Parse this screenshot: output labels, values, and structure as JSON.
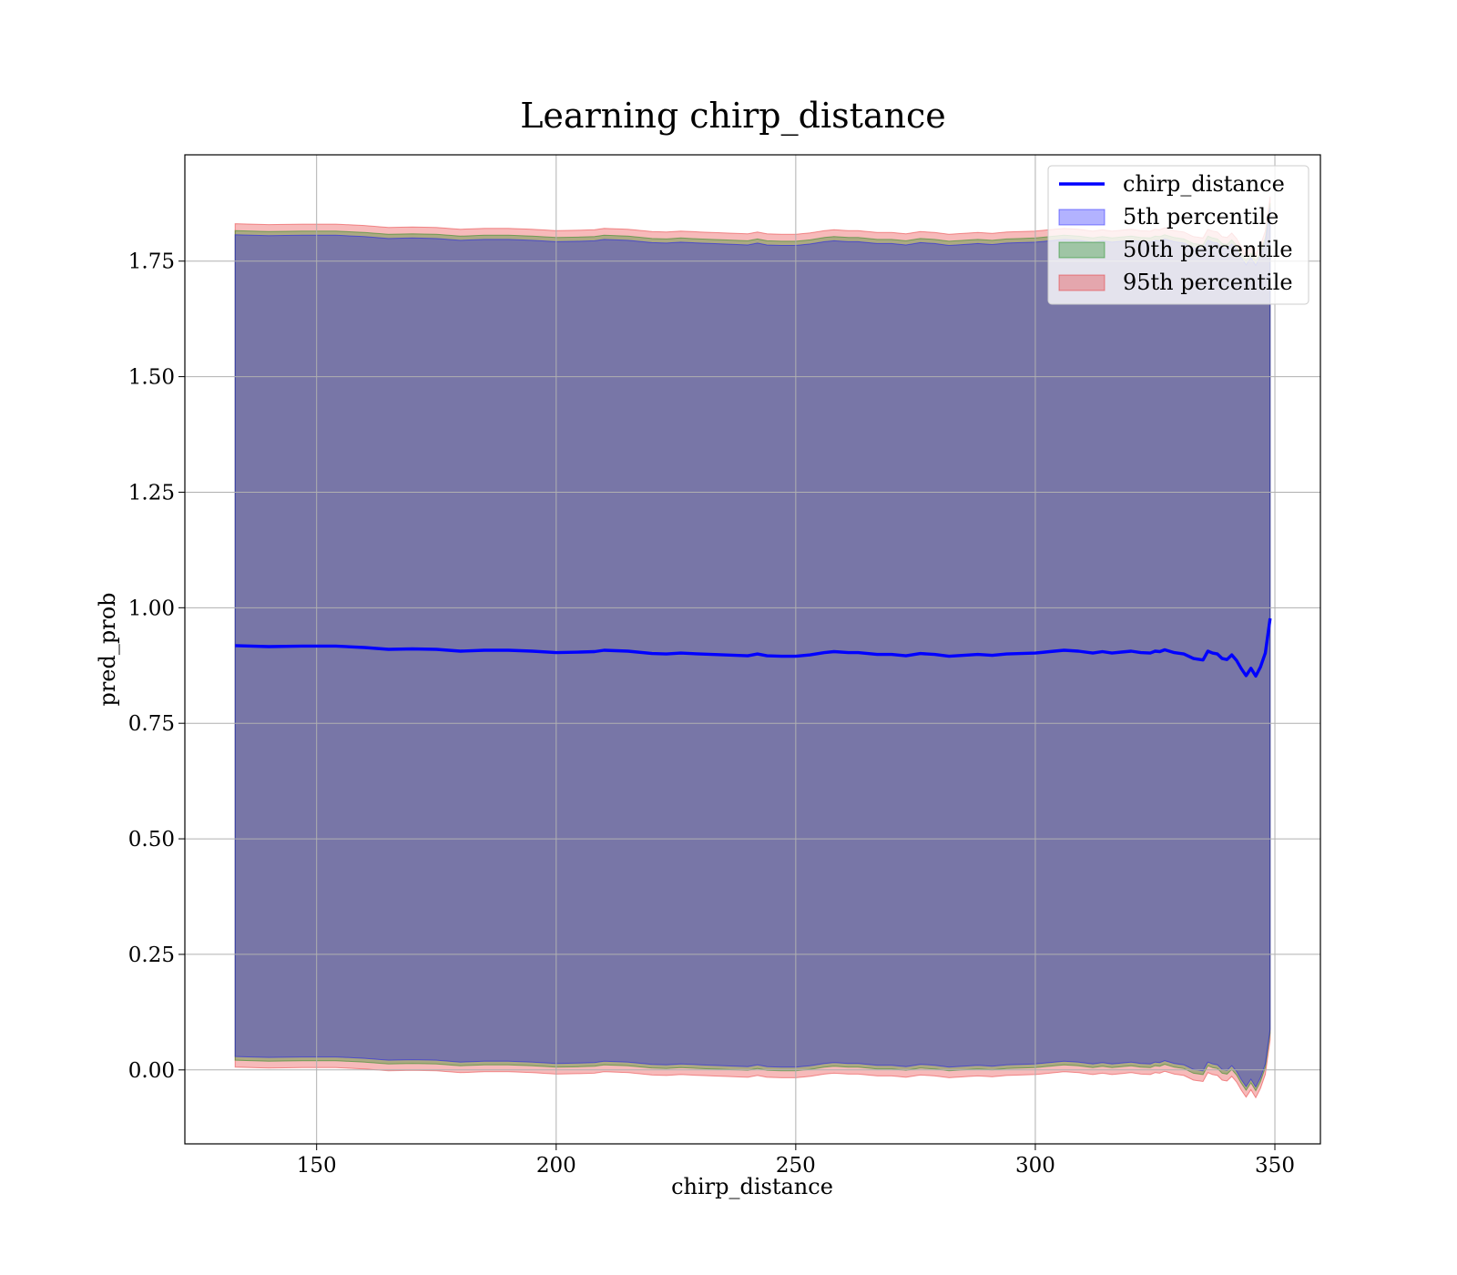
{
  "chart_data": {
    "type": "line",
    "title": "Learning chirp_distance",
    "xlabel": "chirp_distance",
    "ylabel": "pred_prob",
    "xlim": [
      122.5,
      359.5
    ],
    "ylim": [
      -0.16,
      1.98
    ],
    "xticks": [
      150,
      200,
      250,
      300,
      350
    ],
    "xtick_labels": [
      "150",
      "200",
      "250",
      "300",
      "350"
    ],
    "yticks": [
      0.0,
      0.25,
      0.5,
      0.75,
      1.0,
      1.25,
      1.5,
      1.75
    ],
    "ytick_labels": [
      "0.00",
      "0.25",
      "0.50",
      "0.75",
      "1.00",
      "1.25",
      "1.50",
      "1.75"
    ],
    "grid": true,
    "legend_position": "top-right",
    "legend": [
      {
        "label": "chirp_distance",
        "kind": "line",
        "color": "#0000ff"
      },
      {
        "label": "5th percentile",
        "kind": "patch",
        "color": "#0000ff"
      },
      {
        "label": "50th percentile",
        "kind": "patch",
        "color": "#008000"
      },
      {
        "label": "95th percentile",
        "kind": "patch",
        "color": "#e41a1c"
      }
    ],
    "x": [
      133,
      140,
      147,
      154,
      160,
      165,
      170,
      175,
      180,
      185,
      190,
      195,
      200,
      205,
      208,
      210,
      215,
      220,
      223,
      226,
      230,
      235,
      240,
      242,
      244,
      247,
      250,
      253,
      256,
      258,
      261,
      263,
      267,
      270,
      273,
      276,
      279,
      282,
      285,
      288,
      291,
      294,
      297,
      300,
      303,
      306,
      309,
      312,
      314,
      316,
      318,
      320,
      322,
      324,
      325,
      326,
      327,
      329,
      331,
      333,
      335,
      336,
      337,
      338,
      339,
      340,
      341,
      342,
      343,
      344,
      345,
      346,
      347,
      348,
      349
    ],
    "series": [
      {
        "name": "chirp_distance",
        "values": [
          0.918,
          0.916,
          0.917,
          0.917,
          0.914,
          0.91,
          0.911,
          0.91,
          0.906,
          0.908,
          0.908,
          0.906,
          0.903,
          0.904,
          0.905,
          0.908,
          0.906,
          0.901,
          0.9,
          0.902,
          0.9,
          0.898,
          0.896,
          0.9,
          0.896,
          0.895,
          0.895,
          0.898,
          0.903,
          0.905,
          0.903,
          0.903,
          0.899,
          0.899,
          0.896,
          0.901,
          0.899,
          0.895,
          0.897,
          0.899,
          0.897,
          0.9,
          0.901,
          0.902,
          0.905,
          0.908,
          0.906,
          0.902,
          0.905,
          0.902,
          0.904,
          0.906,
          0.903,
          0.902,
          0.906,
          0.905,
          0.909,
          0.903,
          0.9,
          0.89,
          0.887,
          0.906,
          0.902,
          0.9,
          0.89,
          0.888,
          0.898,
          0.886,
          0.868,
          0.853,
          0.869,
          0.852,
          0.872,
          0.902,
          0.977
        ]
      }
    ],
    "bands": [
      {
        "name": "95th percentile",
        "lower_offset": -0.912,
        "upper_offset": 0.913
      },
      {
        "name": "50th percentile",
        "lower_offset": -0.897,
        "upper_offset": 0.898
      },
      {
        "name": "5th percentile",
        "lower_offset": -0.889,
        "upper_offset": 0.889
      }
    ]
  }
}
